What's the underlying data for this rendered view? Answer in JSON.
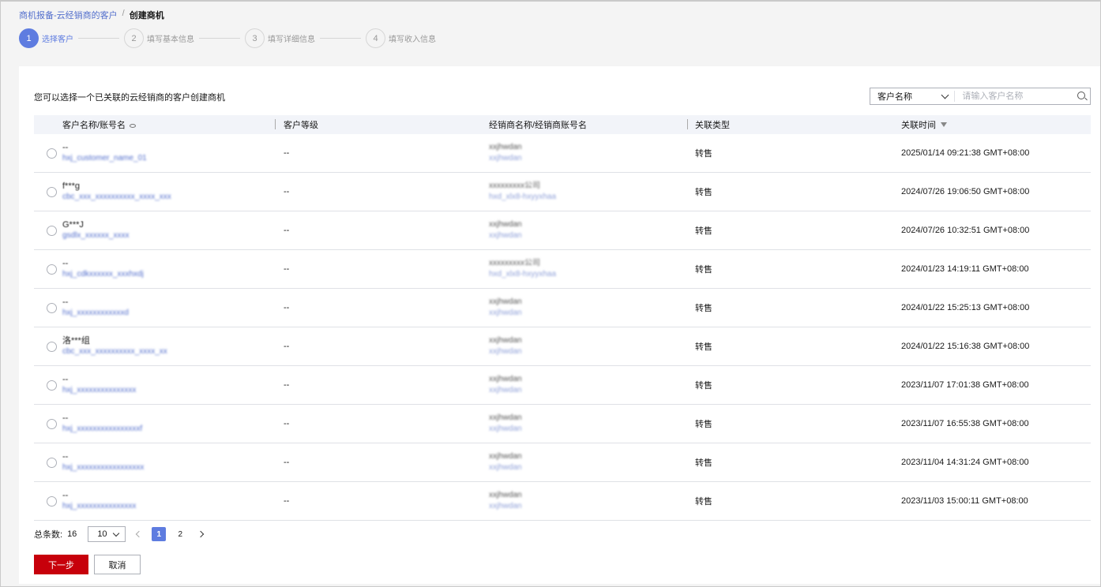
{
  "breadcrumb": {
    "parent": "商机报备-云经销商的客户",
    "separator": "/",
    "current": "创建商机"
  },
  "steps": [
    {
      "num": "1",
      "label": "选择客户",
      "active": true
    },
    {
      "num": "2",
      "label": "填写基本信息",
      "active": false
    },
    {
      "num": "3",
      "label": "填写详细信息",
      "active": false
    },
    {
      "num": "4",
      "label": "填写收入信息",
      "active": false
    }
  ],
  "hint": "您可以选择一个已关联的云经销商的客户创建商机",
  "search": {
    "select_value": "客户名称",
    "placeholder": "请输入客户名称"
  },
  "table": {
    "headers": [
      "客户名称/账号名",
      "客户等级",
      "经销商名称/经销商账号名",
      "关联类型",
      "关联时间"
    ],
    "rows": [
      {
        "name": "--",
        "account": "hxj_customer_name_01",
        "level": "--",
        "dist_name": "xxjhwdan",
        "dist_account": "xxjhwdan",
        "type": "转售",
        "time": "2025/01/14 09:21:38 GMT+08:00"
      },
      {
        "name": "f***g",
        "account": "cbc_xxx_xxxxxxxxxx_xxxx_xxx",
        "level": "--",
        "dist_name": "xxxxxxxxx公司",
        "dist_account": "hxd_xlx8-hxyyxhaa",
        "type": "转售",
        "time": "2024/07/26 19:06:50 GMT+08:00"
      },
      {
        "name": "G***J",
        "account": "gsdlx_xxxxxx_xxxx",
        "level": "--",
        "dist_name": "xxjhwdan",
        "dist_account": "xxjhwdan",
        "type": "转售",
        "time": "2024/07/26 10:32:51 GMT+08:00"
      },
      {
        "name": "--",
        "account": "hxj_cdkxxxxxx_xxxhxdj",
        "level": "--",
        "dist_name": "xxxxxxxxx公司",
        "dist_account": "hxd_xlx8-hxyyxhaa",
        "type": "转售",
        "time": "2024/01/23 14:19:11 GMT+08:00"
      },
      {
        "name": "--",
        "account": "hxj_xxxxxxxxxxxxd",
        "level": "--",
        "dist_name": "xxjhwdan",
        "dist_account": "xxjhwdan",
        "type": "转售",
        "time": "2024/01/22 15:25:13 GMT+08:00"
      },
      {
        "name": "洛***组",
        "account": "cbc_xxx_xxxxxxxxxx_xxxx_xx",
        "level": "--",
        "dist_name": "xxjhwdan",
        "dist_account": "xxjhwdan",
        "type": "转售",
        "time": "2024/01/22 15:16:38 GMT+08:00"
      },
      {
        "name": "--",
        "account": "hxj_xxxxxxxxxxxxxxx",
        "level": "--",
        "dist_name": "xxjhwdan",
        "dist_account": "xxjhwdan",
        "type": "转售",
        "time": "2023/11/07 17:01:38 GMT+08:00"
      },
      {
        "name": "--",
        "account": "hxj_xxxxxxxxxxxxxxxxf",
        "level": "--",
        "dist_name": "xxjhwdan",
        "dist_account": "xxjhwdan",
        "type": "转售",
        "time": "2023/11/07 16:55:38 GMT+08:00"
      },
      {
        "name": "--",
        "account": "hxj_xxxxxxxxxxxxxxxxx",
        "level": "--",
        "dist_name": "xxjhwdan",
        "dist_account": "xxjhwdan",
        "type": "转售",
        "time": "2023/11/04 14:31:24 GMT+08:00"
      },
      {
        "name": "--",
        "account": "hxj_xxxxxxxxxxxxxxx",
        "level": "--",
        "dist_name": "xxjhwdan",
        "dist_account": "xxjhwdan",
        "type": "转售",
        "time": "2023/11/03 15:00:11 GMT+08:00"
      }
    ]
  },
  "pagination": {
    "total_label": "总条数:",
    "total": "16",
    "page_size": "10",
    "pages": [
      "1",
      "2"
    ],
    "current_page": "1"
  },
  "buttons": {
    "next": "下一步",
    "cancel": "取消"
  },
  "colors": {
    "accent": "#5e7ce0",
    "primary_button": "#c7000b",
    "link": "#526ecc"
  }
}
